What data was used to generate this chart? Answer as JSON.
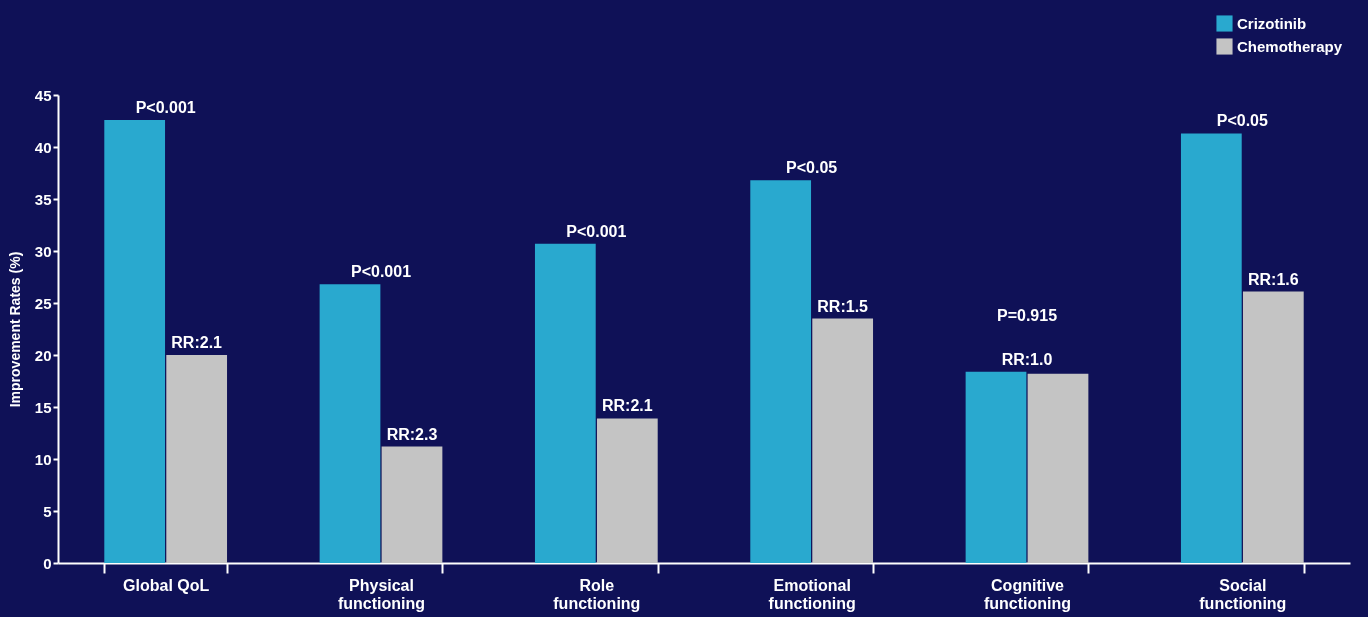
{
  "chart_data": {
    "type": "bar",
    "ylabel": "Improvement Rates (%)",
    "categories": [
      "Global QoL",
      "Physical functioning",
      "Role functioning",
      "Emotional functioning",
      "Cognitive functioning",
      "Social functioning"
    ],
    "series": [
      {
        "name": "Crizotinib",
        "color": "#29a9cf",
        "values": [
          42.6,
          26.8,
          30.7,
          36.8,
          18.4,
          41.3
        ]
      },
      {
        "name": "Chemotherapy",
        "color": "#c4c4c4",
        "values": [
          20.0,
          11.2,
          13.9,
          23.5,
          18.2,
          26.1
        ]
      }
    ],
    "ylim": [
      0,
      45
    ],
    "yticks": [
      0,
      5,
      10,
      15,
      20,
      25,
      30,
      35,
      40,
      45
    ],
    "legend": "top right",
    "annotations": [
      {
        "text": "P<0.001",
        "x": "Global QoL",
        "y": 42.6
      },
      {
        "text": "RR:2.1",
        "x": "Global QoL",
        "y": 20.0
      },
      {
        "text": "P<0.001",
        "x": "Physical functioning",
        "y": 26.8
      },
      {
        "text": "RR:2.3",
        "x": "Physical functioning",
        "y": 11.2
      },
      {
        "text": "P<0.001",
        "x": "Role functioning",
        "y": 30.7
      },
      {
        "text": "RR:2.1",
        "x": "Role functioning",
        "y": 13.9
      },
      {
        "text": "P<0.05",
        "x": "Emotional functioning",
        "y": 36.8
      },
      {
        "text": "RR:1.5",
        "x": "Emotional functioning",
        "y": 23.5
      },
      {
        "text": "P=0.915",
        "x": "Cognitive functioning",
        "y": 18.4
      },
      {
        "text": "RR:1.0",
        "x": "Cognitive functioning",
        "y": 18.4
      },
      {
        "text": "P<0.05",
        "x": "Social functioning",
        "y": 41.3
      },
      {
        "text": "RR:1.6",
        "x": "Social functioning",
        "y": 26.1
      }
    ]
  }
}
